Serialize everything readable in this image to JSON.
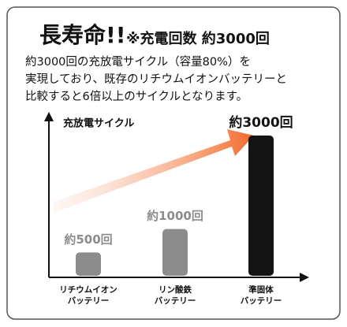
{
  "header": {
    "title": "長寿命!!",
    "subtitle": "※充電回数 約3000回",
    "lines": [
      "約3000回の充放電サイクル（容量80%）を",
      "実現しており、既存のリチウムイオンバッテリーと",
      "比較すると6倍以上のサイクルとなります。"
    ]
  },
  "chart_data": {
    "type": "bar",
    "y_label": "充放電サイクル",
    "categories": [
      "リチウムイオン\nバッテリー",
      "リン酸鉄\nバッテリー",
      "準固体\nバッテリー"
    ],
    "values": [
      500,
      1000,
      3000
    ],
    "value_labels": [
      "約500回",
      "約1000回",
      "約3000回"
    ],
    "colors": [
      "#8c8c8c",
      "#8c8c8c",
      "#141414"
    ],
    "ylim": [
      0,
      3000
    ]
  }
}
